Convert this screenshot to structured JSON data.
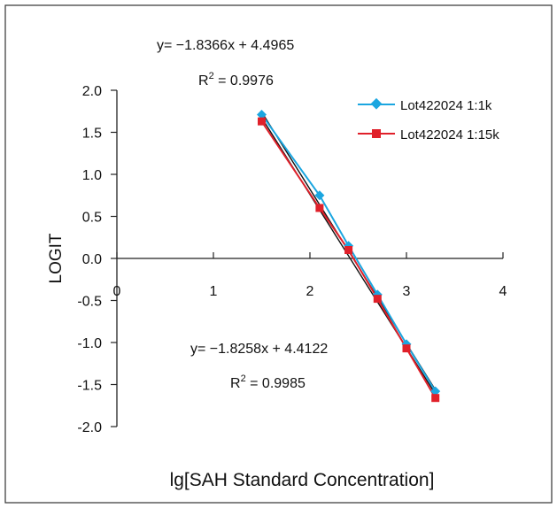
{
  "chart_data": {
    "type": "scatter",
    "title": "",
    "xlabel": "lg[SAH Standard Concentration]",
    "ylabel": "LOGIT",
    "xlim": [
      0,
      4
    ],
    "ylim": [
      -2.0,
      2.0
    ],
    "x_ticks": [
      0,
      1,
      2,
      3,
      4
    ],
    "y_ticks": [
      2.0,
      1.5,
      1.0,
      0.5,
      0.0,
      -0.5,
      -1.0,
      -1.5,
      -2.0
    ],
    "x_tick_labels": [
      "0",
      "1",
      "2",
      "3",
      "4"
    ],
    "y_tick_labels": [
      "2.0",
      "1.5",
      "1.0",
      "0.5",
      "0.0",
      "-0.5",
      "-1.0",
      "-1.5",
      "-2.0"
    ],
    "grid": false,
    "legend_position": "top-right",
    "series": [
      {
        "name": "Lot422024 1:1k",
        "color": "#1ba6e0",
        "marker": "diamond",
        "x": [
          1.5,
          2.1,
          2.4,
          2.7,
          3.0,
          3.3
        ],
        "y": [
          1.71,
          0.75,
          0.15,
          -0.43,
          -1.02,
          -1.58
        ],
        "trendline": {
          "x_range": [
            1.5,
            3.3
          ],
          "slope": -1.8366,
          "intercept": 4.4965,
          "equation": "y= −1.8366x + 4.4965",
          "r2_prefix": "R",
          "r2_sup": "2",
          "r2_value": " = 0.9976"
        }
      },
      {
        "name": "Lot422024 1:15k",
        "color": "#e0202a",
        "marker": "square",
        "x": [
          1.5,
          2.1,
          2.4,
          2.7,
          3.0,
          3.3
        ],
        "y": [
          1.63,
          0.6,
          0.1,
          -0.48,
          -1.07,
          -1.66
        ],
        "trendline": {
          "x_range": [
            1.5,
            3.3
          ],
          "slope": -1.8258,
          "intercept": 4.4122,
          "equation": "y= −1.8258x + 4.4122",
          "r2_prefix": "R",
          "r2_sup": "2",
          "r2_value": " = 0.9985"
        }
      }
    ]
  }
}
